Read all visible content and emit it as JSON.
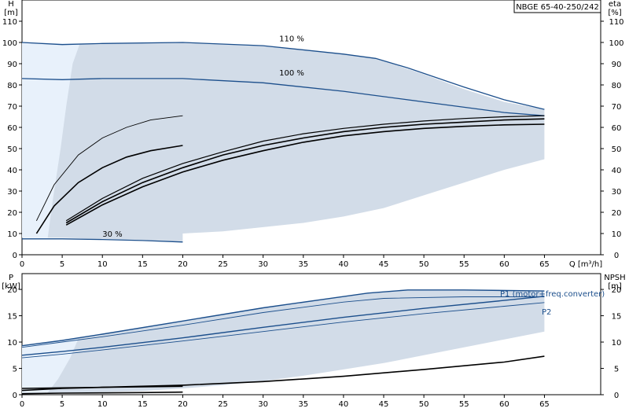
{
  "model_label": "NBGE 65-40-250/242",
  "chart_data": [
    {
      "id": "upper",
      "type": "line",
      "x_label": "Q [m³/h]",
      "x_ticks": [
        "0",
        "5",
        "10",
        "15",
        "20",
        "25",
        "30",
        "35",
        "40",
        "45",
        "50",
        "55",
        "60",
        "65"
      ],
      "xlim": [
        0,
        72
      ],
      "y_left_label": [
        "H",
        "[m]"
      ],
      "y_right_label": [
        "eta",
        "[%]"
      ],
      "ylim": [
        0,
        120
      ],
      "y_ticks": [
        "0",
        "10",
        "20",
        "30",
        "40",
        "50",
        "60",
        "70",
        "80",
        "90",
        "100",
        "110"
      ],
      "grid": false,
      "band_color": "#d2dce8",
      "band_light_color": "#e8f1fb",
      "curve_color_head": "#1c4f8c",
      "curve_color_eff": "#000000",
      "band_upper": [
        [
          0,
          100
        ],
        [
          5,
          99.5
        ],
        [
          10,
          99.5
        ],
        [
          20,
          100
        ],
        [
          30,
          98.5
        ],
        [
          40,
          94.5
        ],
        [
          44,
          92.5
        ],
        [
          50,
          85
        ],
        [
          55,
          78
        ],
        [
          60,
          72
        ],
        [
          65,
          68.5
        ]
      ],
      "band_lower_tail": [
        [
          65,
          45
        ],
        [
          60,
          40
        ],
        [
          55,
          34
        ],
        [
          50,
          28
        ],
        [
          45,
          22
        ],
        [
          40,
          18
        ],
        [
          35,
          15
        ],
        [
          30,
          13
        ],
        [
          25,
          11
        ],
        [
          20,
          10
        ]
      ],
      "band_lower_start": [
        [
          20,
          6
        ],
        [
          15,
          7
        ],
        [
          10,
          7.5
        ],
        [
          5,
          8
        ],
        [
          0,
          8
        ]
      ],
      "head_curves": [
        {
          "label": "110 %",
          "points": [
            [
              0,
              100
            ],
            [
              5,
              99
            ],
            [
              10,
              99.5
            ],
            [
              20,
              100
            ],
            [
              30,
              98.5
            ],
            [
              40,
              94.5
            ],
            [
              44,
              92.5
            ],
            [
              48,
              88
            ],
            [
              55,
              79
            ],
            [
              60,
              73
            ],
            [
              65,
              68.5
            ]
          ]
        },
        {
          "label": "100 %",
          "points": [
            [
              0,
              83
            ],
            [
              5,
              82.5
            ],
            [
              10,
              83
            ],
            [
              20,
              83
            ],
            [
              30,
              81
            ],
            [
              40,
              77
            ],
            [
              50,
              72
            ],
            [
              60,
              67
            ],
            [
              65,
              65.5
            ]
          ]
        },
        {
          "label": "30 %",
          "points": [
            [
              0,
              7.5
            ],
            [
              5,
              7.5
            ],
            [
              10,
              7.2
            ],
            [
              15,
              6.7
            ],
            [
              20,
              6
            ]
          ]
        }
      ],
      "eff_curves": [
        {
          "points": [
            [
              1.8,
              16
            ],
            [
              4,
              33
            ],
            [
              7,
              47
            ],
            [
              10,
              55
            ],
            [
              13,
              60
            ],
            [
              16,
              63.5
            ],
            [
              20,
              65.5
            ]
          ]
        },
        {
          "points": [
            [
              1.8,
              10
            ],
            [
              4,
              23
            ],
            [
              7,
              34
            ],
            [
              10,
              41
            ],
            [
              13,
              46
            ],
            [
              16,
              49
            ],
            [
              20,
              51.5
            ]
          ]
        },
        {
          "points": [
            [
              5.5,
              16
            ],
            [
              10,
              26.5
            ],
            [
              15,
              36
            ],
            [
              20,
              43
            ],
            [
              25,
              48.5
            ],
            [
              30,
              53.5
            ],
            [
              35,
              57
            ],
            [
              40,
              59.5
            ],
            [
              45,
              61.5
            ],
            [
              50,
              63
            ],
            [
              55,
              64.2
            ],
            [
              60,
              65
            ],
            [
              65,
              65.5
            ]
          ]
        },
        {
          "points": [
            [
              5.5,
              15
            ],
            [
              10,
              25
            ],
            [
              15,
              34
            ],
            [
              20,
              41
            ],
            [
              25,
              47
            ],
            [
              30,
              51.5
            ],
            [
              35,
              55
            ],
            [
              40,
              58
            ],
            [
              45,
              60
            ],
            [
              50,
              61.5
            ],
            [
              55,
              62.5
            ],
            [
              60,
              63.5
            ],
            [
              65,
              64
            ]
          ]
        },
        {
          "points": [
            [
              5.5,
              14
            ],
            [
              10,
              23.5
            ],
            [
              15,
              32
            ],
            [
              20,
              39
            ],
            [
              25,
              44.5
            ],
            [
              30,
              49
            ],
            [
              35,
              53
            ],
            [
              40,
              56
            ],
            [
              45,
              58
            ],
            [
              50,
              59.5
            ],
            [
              55,
              60.5
            ],
            [
              60,
              61.2
            ],
            [
              65,
              61.5
            ]
          ]
        }
      ]
    },
    {
      "id": "lower",
      "type": "line",
      "x_ticks": [
        "0",
        "5",
        "10",
        "15",
        "20",
        "25",
        "30",
        "35",
        "40",
        "45",
        "50",
        "55",
        "60",
        "65"
      ],
      "xlim": [
        0,
        72
      ],
      "y_left_label": [
        "P",
        "[kW]"
      ],
      "y_right_label": [
        "NPSH",
        "[m]"
      ],
      "ylim": [
        0,
        23
      ],
      "y_ticks": [
        "0",
        "5",
        "10",
        "15",
        "20"
      ],
      "grid": false,
      "band_upper": [
        [
          0,
          9.3
        ],
        [
          5,
          10.3
        ],
        [
          10,
          11.5
        ],
        [
          20,
          14
        ],
        [
          30,
          16.5
        ],
        [
          43,
          19.3
        ],
        [
          48,
          19.9
        ],
        [
          55,
          19.9
        ],
        [
          65,
          19.7
        ]
      ],
      "band_lower_tail": [
        [
          65,
          12
        ],
        [
          60,
          10.5
        ],
        [
          55,
          9
        ],
        [
          50,
          7.5
        ],
        [
          45,
          6
        ],
        [
          40,
          4.8
        ],
        [
          35,
          3.6
        ],
        [
          30,
          2.6
        ],
        [
          25,
          1.8
        ],
        [
          20,
          1.2
        ],
        [
          15,
          0.7
        ],
        [
          10,
          0.5
        ],
        [
          7,
          0.4
        ]
      ],
      "band_lower_start": [
        [
          5,
          0.35
        ],
        [
          0,
          0.3
        ]
      ],
      "power_curves": [
        {
          "label": "",
          "points": [
            [
              0,
              9.3
            ],
            [
              5,
              10.3
            ],
            [
              10,
              11.5
            ],
            [
              20,
              14
            ],
            [
              30,
              16.5
            ],
            [
              43,
              19.3
            ],
            [
              48,
              19.9
            ],
            [
              55,
              19.9
            ],
            [
              65,
              19.7
            ]
          ]
        },
        {
          "label": "",
          "points": [
            [
              0,
              9
            ],
            [
              5,
              10
            ],
            [
              10,
              11
            ],
            [
              20,
              13.2
            ],
            [
              30,
              15.6
            ],
            [
              40,
              17.6
            ],
            [
              45,
              18.3
            ],
            [
              55,
              18.6
            ],
            [
              65,
              18.6
            ]
          ]
        },
        {
          "label": "P1 (motor+freq.converter)",
          "points": [
            [
              0,
              7.5
            ],
            [
              5,
              8.2
            ],
            [
              10,
              9
            ],
            [
              20,
              10.8
            ],
            [
              30,
              12.8
            ],
            [
              40,
              14.7
            ],
            [
              50,
              16.4
            ],
            [
              60,
              17.9
            ],
            [
              65,
              18.7
            ]
          ]
        },
        {
          "label": "P2",
          "points": [
            [
              0,
              7
            ],
            [
              5,
              7.7
            ],
            [
              10,
              8.5
            ],
            [
              20,
              10.2
            ],
            [
              30,
              12
            ],
            [
              40,
              13.8
            ],
            [
              50,
              15.4
            ],
            [
              60,
              16.8
            ],
            [
              65,
              17.5
            ]
          ]
        },
        {
          "label": "",
          "points": [
            [
              0,
              1.2
            ],
            [
              5,
              1.3
            ],
            [
              10,
              1.4
            ],
            [
              15,
              1.5
            ],
            [
              20,
              1.6
            ]
          ]
        }
      ],
      "npsh_curves": [
        {
          "points": [
            [
              0,
              0.8
            ],
            [
              5,
              1.2
            ],
            [
              10,
              1.4
            ],
            [
              20,
              1.8
            ],
            [
              30,
              2.5
            ],
            [
              40,
              3.5
            ],
            [
              50,
              4.8
            ],
            [
              60,
              6.2
            ],
            [
              65,
              7.3
            ]
          ]
        },
        {
          "points": [
            [
              0,
              0.2
            ],
            [
              5,
              0.3
            ],
            [
              10,
              0.35
            ],
            [
              15,
              0.4
            ],
            [
              20,
              0.5
            ]
          ]
        }
      ]
    }
  ]
}
